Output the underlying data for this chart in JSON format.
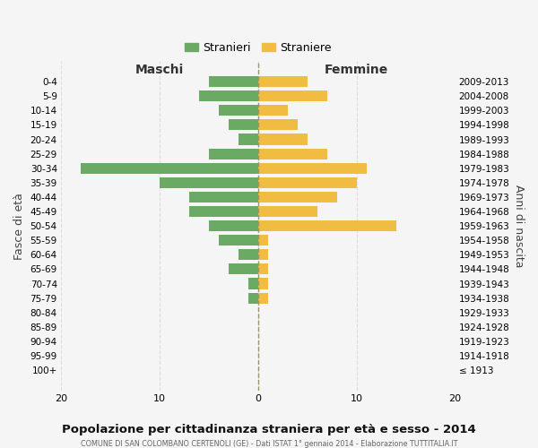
{
  "age_groups": [
    "0-4",
    "5-9",
    "10-14",
    "15-19",
    "20-24",
    "25-29",
    "30-34",
    "35-39",
    "40-44",
    "45-49",
    "50-54",
    "55-59",
    "60-64",
    "65-69",
    "70-74",
    "75-79",
    "80-84",
    "85-89",
    "90-94",
    "95-99",
    "100+"
  ],
  "birth_years": [
    "2009-2013",
    "2004-2008",
    "1999-2003",
    "1994-1998",
    "1989-1993",
    "1984-1988",
    "1979-1983",
    "1974-1978",
    "1969-1973",
    "1964-1968",
    "1959-1963",
    "1954-1958",
    "1949-1953",
    "1944-1948",
    "1939-1943",
    "1934-1938",
    "1929-1933",
    "1924-1928",
    "1919-1923",
    "1914-1918",
    "≤ 1913"
  ],
  "maschi": [
    5,
    6,
    4,
    3,
    2,
    5,
    18,
    10,
    7,
    7,
    5,
    4,
    2,
    3,
    1,
    1,
    0,
    0,
    0,
    0,
    0
  ],
  "femmine": [
    5,
    7,
    3,
    4,
    5,
    7,
    11,
    10,
    8,
    6,
    14,
    1,
    1,
    1,
    1,
    1,
    0,
    0,
    0,
    0,
    0
  ],
  "color_maschi": "#6aaa64",
  "color_femmine": "#f0bc42",
  "title": "Popolazione per cittadinanza straniera per età e sesso - 2014",
  "subtitle": "COMUNE DI SAN COLOMBANO CERTENOLI (GE) - Dati ISTAT 1° gennaio 2014 - Elaborazione TUTTITALIA.IT",
  "xlabel_left": "Maschi",
  "xlabel_right": "Femmine",
  "ylabel_left": "Fasce di età",
  "ylabel_right": "Anni di nascita",
  "xlim": 20,
  "legend_maschi": "Stranieri",
  "legend_femmine": "Straniere",
  "bg_color": "#f5f5f5",
  "grid_color": "#dddddd"
}
